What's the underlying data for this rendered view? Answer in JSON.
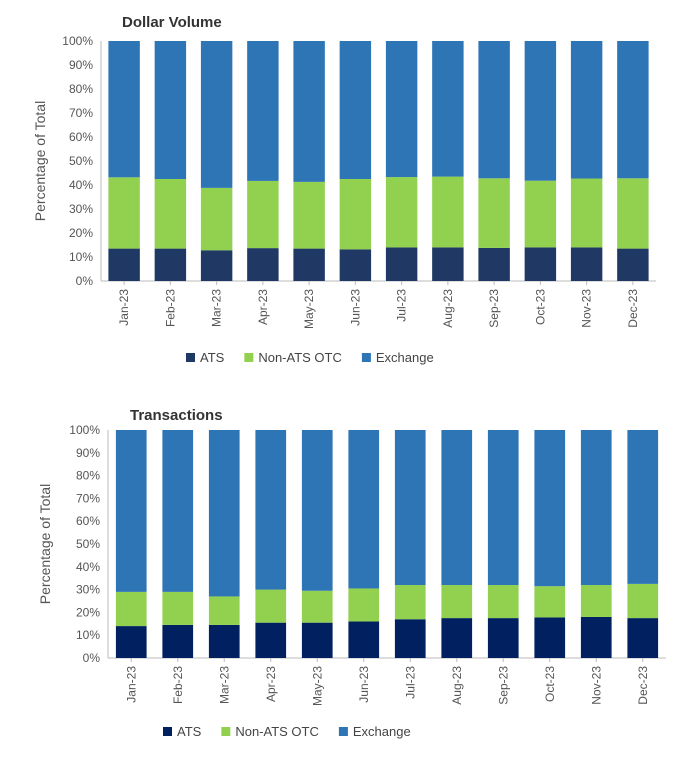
{
  "chart_data": [
    {
      "type": "bar",
      "stacked": true,
      "percent": true,
      "title": "Dollar Volume",
      "ylabel": "Percentage of Total",
      "ylim": [
        0,
        100
      ],
      "yticks": [
        "0%",
        "10%",
        "20%",
        "30%",
        "40%",
        "50%",
        "60%",
        "70%",
        "80%",
        "90%",
        "100%"
      ],
      "categories": [
        "Jan-23",
        "Feb-23",
        "Mar-23",
        "Apr-23",
        "May-23",
        "Jun-23",
        "Jul-23",
        "Aug-23",
        "Sep-23",
        "Oct-23",
        "Nov-23",
        "Dec-23"
      ],
      "legend_position": "bottom",
      "series": [
        {
          "name": "ATS",
          "color": "#1f3864",
          "values": [
            13.5,
            13.5,
            12.8,
            13.7,
            13.5,
            13.2,
            14.0,
            14.0,
            13.8,
            14.0,
            14.0,
            13.5
          ]
        },
        {
          "name": "Non-ATS OTC",
          "color": "#92d050",
          "values": [
            29.7,
            29.0,
            26.0,
            28.0,
            27.8,
            29.3,
            29.3,
            29.5,
            29.0,
            27.8,
            28.7,
            29.3
          ]
        },
        {
          "name": "Exchange",
          "color": "#2e75b6",
          "values": [
            56.8,
            57.5,
            61.2,
            58.3,
            58.7,
            57.5,
            56.7,
            56.5,
            57.2,
            58.2,
            57.3,
            57.2
          ]
        }
      ]
    },
    {
      "type": "bar",
      "stacked": true,
      "percent": true,
      "title": "Transactions",
      "ylabel": "Percentage of Total",
      "ylim": [
        0,
        100
      ],
      "yticks": [
        "0%",
        "10%",
        "20%",
        "30%",
        "40%",
        "50%",
        "60%",
        "70%",
        "80%",
        "90%",
        "100%"
      ],
      "categories": [
        "Jan-23",
        "Feb-23",
        "Mar-23",
        "Apr-23",
        "May-23",
        "Jun-23",
        "Jul-23",
        "Aug-23",
        "Sep-23",
        "Oct-23",
        "Nov-23",
        "Dec-23"
      ],
      "legend_position": "bottom",
      "series": [
        {
          "name": "ATS",
          "color": "#002060",
          "values": [
            14.0,
            14.5,
            14.5,
            15.5,
            15.5,
            16.0,
            17.0,
            17.5,
            17.5,
            17.8,
            18.0,
            17.5
          ]
        },
        {
          "name": "Non-ATS OTC",
          "color": "#92d050",
          "values": [
            15.0,
            14.5,
            12.5,
            14.5,
            14.0,
            14.5,
            15.0,
            14.5,
            14.5,
            13.7,
            14.0,
            15.0
          ]
        },
        {
          "name": "Exchange",
          "color": "#2e75b6",
          "values": [
            71.0,
            71.0,
            73.0,
            70.0,
            70.5,
            69.5,
            68.0,
            68.0,
            68.0,
            68.5,
            68.0,
            67.5
          ]
        }
      ]
    }
  ]
}
